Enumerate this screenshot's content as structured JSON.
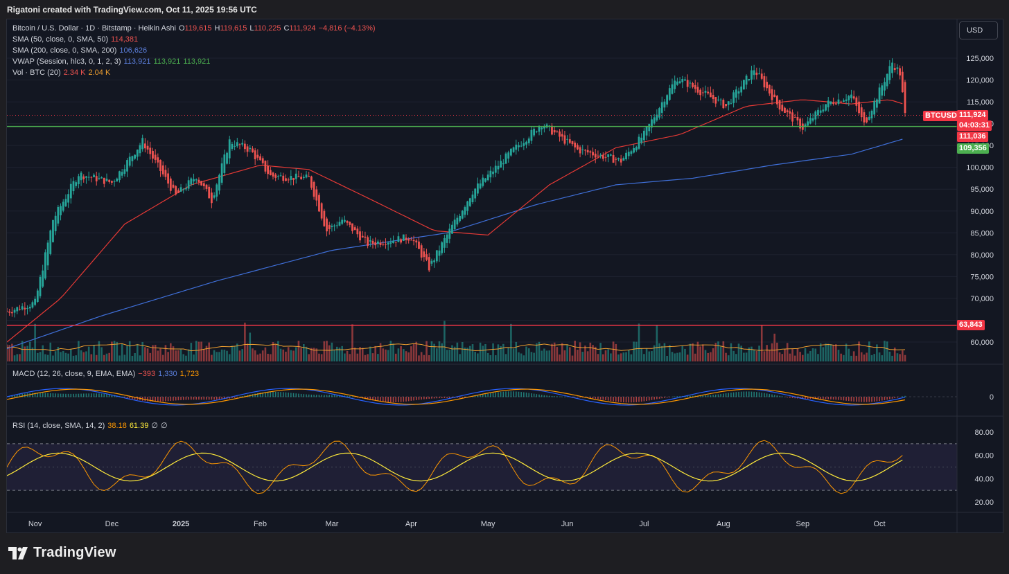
{
  "attribution": "Rigatoni created with TradingView.com, Oct 11, 2025 19:56 UTC",
  "currency_button": "USD",
  "brand": "TradingView",
  "legend": {
    "symbol": "Bitcoin / U.S. Dollar · 1D · Bitstamp · Heikin Ashi",
    "o_label": "O",
    "o": "119,615",
    "h_label": "H",
    "h": "119,615",
    "l_label": "L",
    "l": "110,225",
    "c_label": "C",
    "c": "111,924",
    "change": "−4,816 (−4.13%)",
    "sma50_label": "SMA (50, close, 0, SMA, 50)",
    "sma50": "114,381",
    "sma200_label": "SMA (200, close, 0, SMA, 200)",
    "sma200": "106,626",
    "vwap_label": "VWAP (Session, hlc3, 0, 1, 2, 3)",
    "vwap1": "113,921",
    "vwap2": "113,921",
    "vwap3": "113,921",
    "vol_label": "Vol · BTC (20)",
    "vol1": "2.34 K",
    "vol2": "2.04 K",
    "macd_label": "MACD (12, 26, close, 9, EMA, EMA)",
    "macd1": "−393",
    "macd2": "1,330",
    "macd3": "1,723",
    "rsi_label": "RSI (14, close, SMA, 14, 2)",
    "rsi1": "38.18",
    "rsi2": "61.39",
    "rsi3": "∅",
    "rsi4": "∅"
  },
  "badges": {
    "symbol_tag": "BTCUSD",
    "last_price": "111,924",
    "countdown": "04:03:31",
    "level_red": "111,036",
    "level_green": "109,356",
    "support_low": "63,843"
  },
  "colors": {
    "up": "#26a69a",
    "down": "#ef5350",
    "sma50": "#e53935",
    "sma200": "#3f6fd8",
    "hline_green": "#4caf50",
    "hline_red": "#f23645",
    "macd": "#2962ff",
    "signal": "#ff9800",
    "rsi": "#ff9800",
    "rsi_ma": "#ffeb3b",
    "rsi_band": "#7e57c2",
    "bg": "#131722"
  },
  "chart_data": {
    "type": "line",
    "title": "Bitcoin / U.S. Dollar · 1D · Bitstamp · Heikin Ashi",
    "x_labels": [
      "Nov",
      "Dec",
      "2025",
      "Feb",
      "Mar",
      "Apr",
      "May",
      "Jun",
      "Jul",
      "Aug",
      "Sep",
      "Oct"
    ],
    "y_ticks": [
      "125,000",
      "120,000",
      "115,000",
      "110,000",
      "105,000",
      "100,000",
      "95,000",
      "90,000",
      "85,000",
      "80,000",
      "75,000",
      "70,000",
      "65,000",
      "60,000"
    ],
    "ylim": [
      55000,
      128000
    ],
    "horizontal_levels": {
      "green": 109356,
      "red": 63843
    },
    "series": [
      {
        "name": "BTCUSD",
        "x": [
          "2024-10-25",
          "2024-11-05",
          "2024-11-12",
          "2024-11-22",
          "2024-12-05",
          "2024-12-17",
          "2024-12-30",
          "2025-01-07",
          "2025-01-13",
          "2025-01-20",
          "2025-01-28",
          "2025-02-05",
          "2025-02-20",
          "2025-02-27",
          "2025-03-05",
          "2025-03-15",
          "2025-04-01",
          "2025-04-08",
          "2025-04-15",
          "2025-04-25",
          "2025-05-10",
          "2025-05-22",
          "2025-06-05",
          "2025-06-22",
          "2025-07-01",
          "2025-07-10",
          "2025-07-14",
          "2025-08-02",
          "2025-08-13",
          "2025-08-22",
          "2025-09-01",
          "2025-09-10",
          "2025-09-20",
          "2025-09-25",
          "2025-10-01",
          "2025-10-06",
          "2025-10-09",
          "2025-10-11"
        ],
        "y": [
          67000,
          69000,
          88000,
          98500,
          96500,
          106000,
          93500,
          98000,
          92500,
          106000,
          104000,
          98000,
          97500,
          85500,
          88000,
          82500,
          84000,
          77000,
          84500,
          94500,
          103500,
          110000,
          104000,
          101500,
          107500,
          117000,
          120500,
          114000,
          122500,
          114500,
          109000,
          114500,
          116500,
          109800,
          117500,
          124000,
          121500,
          111924
        ]
      },
      {
        "name": "SMA (50, close, 0, SMA, 50)",
        "x": [
          "2024-10-25",
          "2024-11-15",
          "2024-12-10",
          "2025-01-05",
          "2025-02-01",
          "2025-02-20",
          "2025-03-15",
          "2025-04-10",
          "2025-05-01",
          "2025-05-25",
          "2025-06-20",
          "2025-07-15",
          "2025-08-10",
          "2025-09-01",
          "2025-09-20",
          "2025-10-05",
          "2025-10-11"
        ],
        "y": [
          60000,
          70000,
          87000,
          96000,
          100500,
          99500,
          93000,
          85500,
          84500,
          96000,
          104500,
          107500,
          114000,
          115500,
          114500,
          115500,
          114381
        ]
      },
      {
        "name": "SMA (200, close, 0, SMA, 200)",
        "x": [
          "2024-10-25",
          "2024-12-01",
          "2025-01-15",
          "2025-03-01",
          "2025-04-15",
          "2025-05-20",
          "2025-06-20",
          "2025-07-20",
          "2025-08-20",
          "2025-09-20",
          "2025-10-11"
        ],
        "y": [
          58500,
          66000,
          74000,
          81000,
          85000,
          91500,
          96000,
          97500,
          100500,
          103000,
          106626
        ]
      }
    ]
  }
}
